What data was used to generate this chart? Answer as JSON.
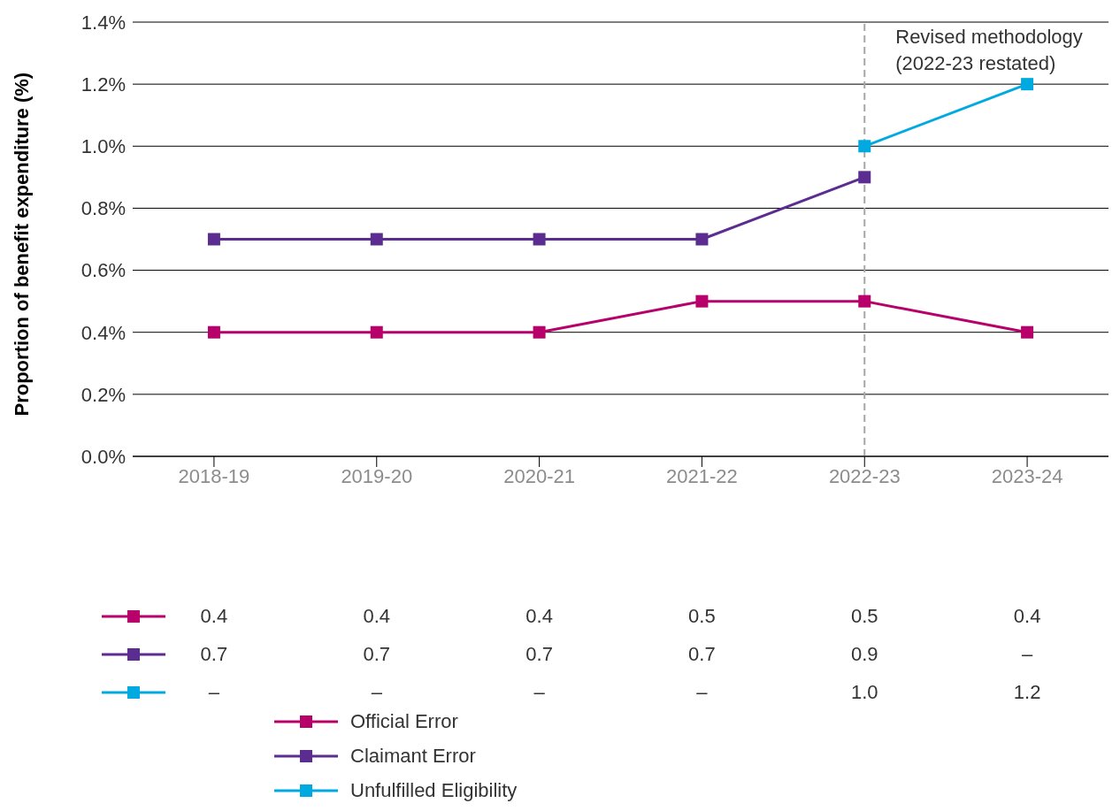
{
  "chart_data": {
    "type": "line",
    "ylabel": "Proportion of benefit expenditure (%)",
    "categories": [
      "2018-19",
      "2019-20",
      "2020-21",
      "2021-22",
      "2022-23",
      "2023-24"
    ],
    "series": [
      {
        "name": "Official Error",
        "color": "#b8006b",
        "values": [
          0.4,
          0.4,
          0.4,
          0.5,
          0.5,
          0.4
        ],
        "value_labels": [
          "0.4",
          "0.4",
          "0.4",
          "0.5",
          "0.5",
          "0.4"
        ]
      },
      {
        "name": "Claimant Error",
        "color": "#5c2d91",
        "values": [
          0.7,
          0.7,
          0.7,
          0.7,
          0.9,
          null
        ],
        "value_labels": [
          "0.7",
          "0.7",
          "0.7",
          "0.7",
          "0.9",
          "–"
        ]
      },
      {
        "name": "Unfulfilled Eligibility",
        "color": "#00a9e0",
        "values": [
          null,
          null,
          null,
          null,
          1.0,
          1.2
        ],
        "value_labels": [
          "–",
          "–",
          "–",
          "–",
          "1.0",
          "1.2"
        ]
      }
    ],
    "ylim": [
      0,
      1.4
    ],
    "yticks": [
      {
        "value": 0,
        "label": "0.0%"
      },
      {
        "value": 0.2,
        "label": "0.2%"
      },
      {
        "value": 0.4,
        "label": "0.4%"
      },
      {
        "value": 0.6,
        "label": "0.6%"
      },
      {
        "value": 0.8,
        "label": "0.8%"
      },
      {
        "value": 1.0,
        "label": "1.0%"
      },
      {
        "value": 1.2,
        "label": "1.2%"
      },
      {
        "value": 1.4,
        "label": "1.4%"
      }
    ],
    "ref_lines": [
      {
        "axis": "x",
        "value": "2022-23",
        "label": "Revised methodology\n(2022-23 restated)",
        "color": "#a6a6a6",
        "line_style": "dashed"
      }
    ],
    "grid": "y",
    "legend": "bottom",
    "marker": "square",
    "line_style": "solid"
  }
}
